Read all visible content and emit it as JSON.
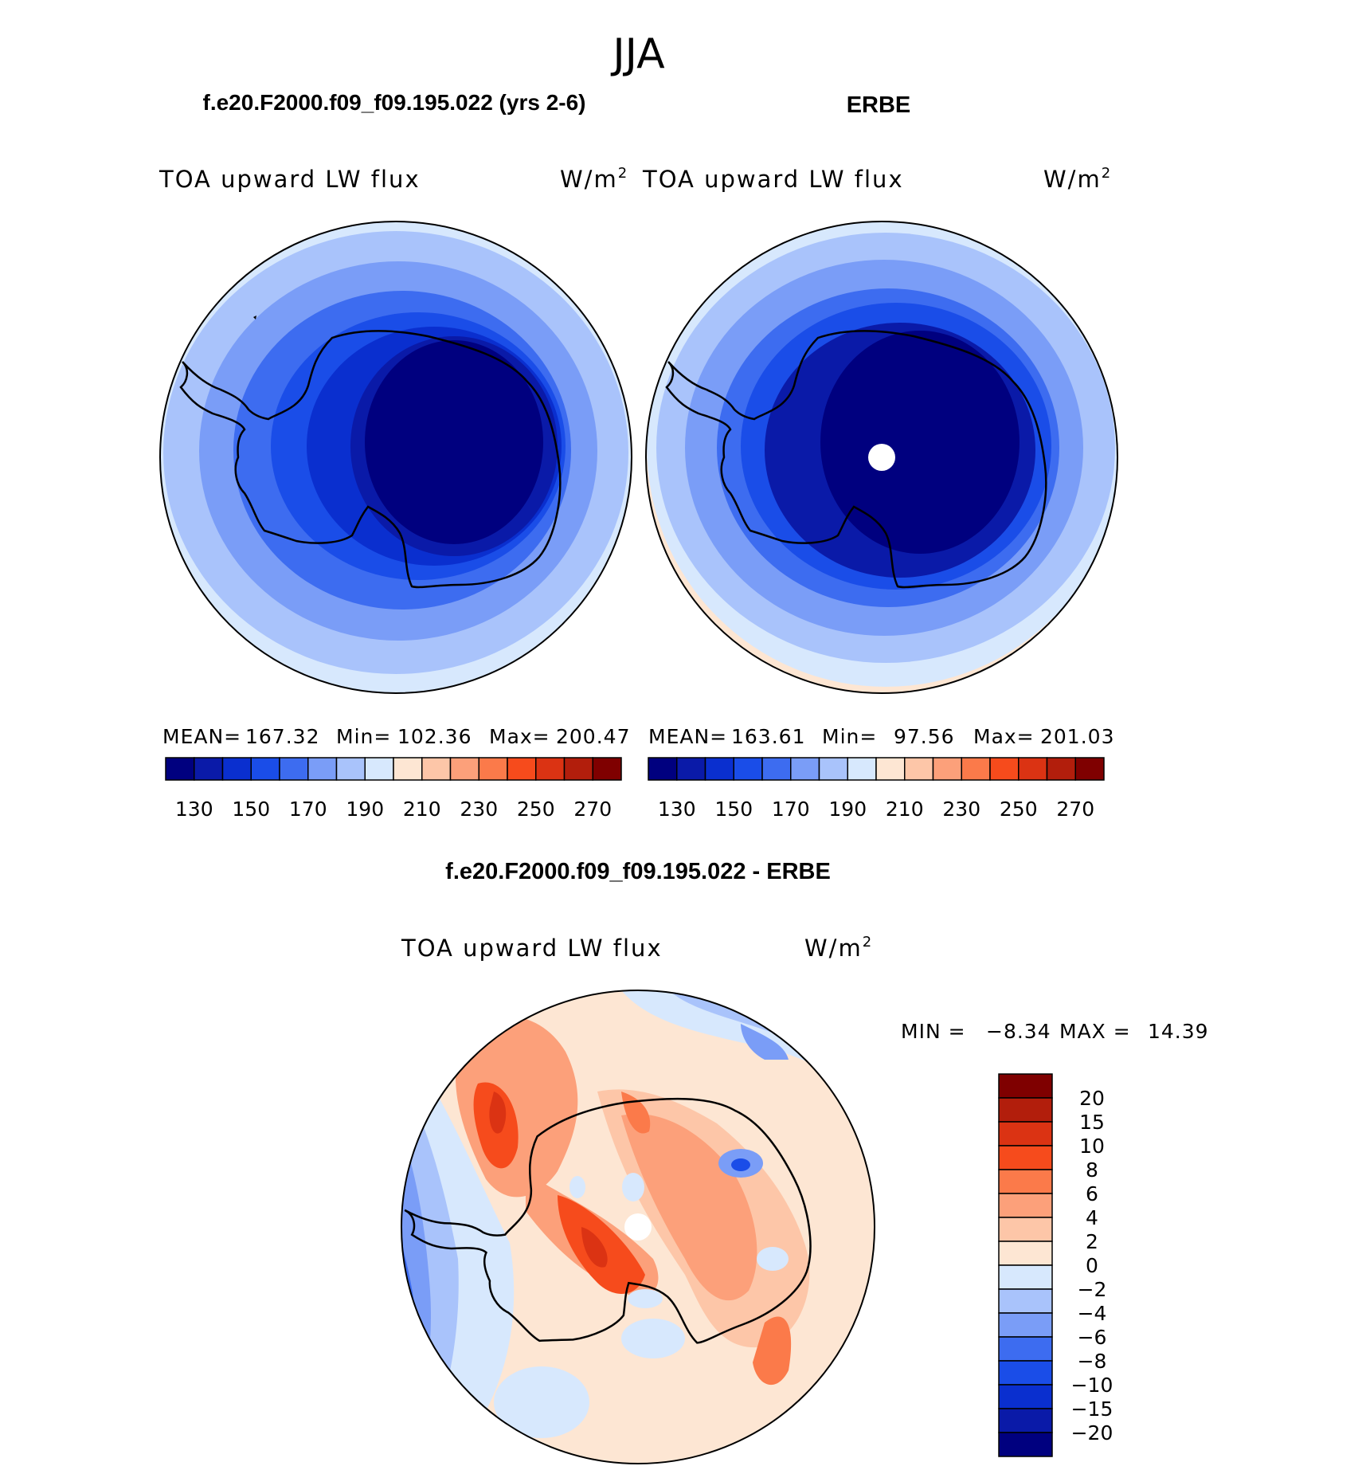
{
  "season": "JJA",
  "panels": {
    "model": {
      "title": "f.e20.F2000.f09_f09.195.022 (yrs 2-6)",
      "variable": "TOA upward LW flux",
      "units": "W/m",
      "units_exp": "2",
      "mean_label": "MEAN=",
      "mean": "167.32",
      "min_label": "Min=",
      "min": "102.36",
      "max_label": "Max=",
      "max": "200.47"
    },
    "obs": {
      "title": "ERBE",
      "variable": "TOA upward LW flux",
      "units": "W/m",
      "units_exp": "2",
      "mean_label": "MEAN=",
      "mean": "163.61",
      "min_label": "Min=",
      "min": "97.56",
      "max_label": "Max=",
      "max": "201.03"
    },
    "diff": {
      "title": "f.e20.F2000.f09_f09.195.022 - ERBE",
      "variable": "TOA upward LW flux",
      "units": "W/m",
      "units_exp": "2",
      "min_label": "MIN =",
      "min": "−8.34",
      "max_label": "MAX =",
      "max": "14.39"
    }
  },
  "colorbar_abs": {
    "colors": [
      "#00007f",
      "#0a1aa8",
      "#0a2fcf",
      "#1a4de8",
      "#3d6cf0",
      "#7a9df7",
      "#a9c3fb",
      "#d7e8fd",
      "#fde6d3",
      "#fdc6a8",
      "#fca07a",
      "#fb7a4a",
      "#f64b1c",
      "#db3313",
      "#b21e0c",
      "#7f0000"
    ],
    "tick_labels": [
      "130",
      "150",
      "170",
      "190",
      "210",
      "230",
      "250",
      "270"
    ]
  },
  "colorbar_diff": {
    "colors": [
      "#00007f",
      "#0a1aa8",
      "#0a2fcf",
      "#1a4de8",
      "#3d6cf0",
      "#7a9df7",
      "#a9c3fb",
      "#d7e8fd",
      "#fde6d3",
      "#fdc6a8",
      "#fca07a",
      "#fb7a4a",
      "#f64b1c",
      "#db3313",
      "#b21e0c",
      "#7f0000"
    ],
    "tick_labels": [
      "20",
      "15",
      "10",
      "8",
      "6",
      "4",
      "2",
      "0",
      "−2",
      "−4",
      "−6",
      "−8",
      "−10",
      "−15",
      "−20"
    ]
  },
  "colors": {
    "deep_blue": "#00007f",
    "mid_blue": "#1a4de8",
    "light_blue": "#a9c3fb",
    "very_light_blue": "#d7e8fd",
    "peach": "#fde6d3",
    "salmon": "#fca07a",
    "orange_red": "#f64b1c",
    "dark_red": "#b21e0c"
  }
}
